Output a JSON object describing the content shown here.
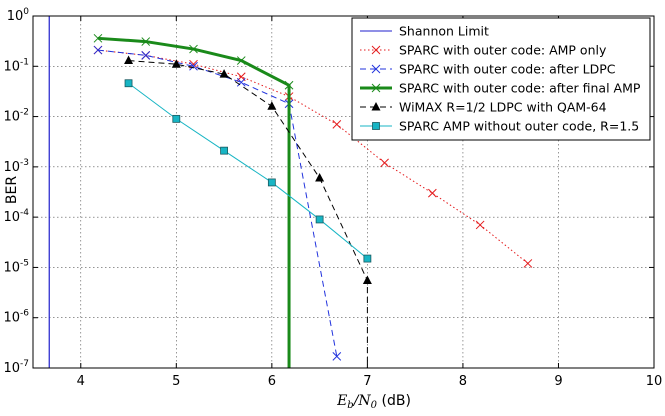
{
  "chart_data": {
    "type": "line",
    "xlabel": "E_b/N_0 (dB)",
    "xlabel_parts": {
      "main": "E",
      "sub1": "b",
      "mid": "/N",
      "sub2": "0",
      "unit": " (dB)"
    },
    "ylabel": "BER",
    "xlim": [
      3.5,
      10
    ],
    "ylim_log10": [
      -7,
      0
    ],
    "y_scale": "log",
    "grid": true,
    "x_ticks": [
      4,
      5,
      6,
      7,
      8,
      9,
      10
    ],
    "x_tick_labels": [
      "4",
      "5",
      "6",
      "7",
      "8",
      "9",
      "10"
    ],
    "y_ticks": [
      {
        "value_log10": 0,
        "label_base": "10",
        "label_exp": "0"
      },
      {
        "value_log10": -1,
        "label_base": "10",
        "label_exp": "-1"
      },
      {
        "value_log10": -2,
        "label_base": "10",
        "label_exp": "-2"
      },
      {
        "value_log10": -3,
        "label_base": "10",
        "label_exp": "-3"
      },
      {
        "value_log10": -4,
        "label_base": "10",
        "label_exp": "-4"
      },
      {
        "value_log10": -5,
        "label_base": "10",
        "label_exp": "-5"
      },
      {
        "value_log10": -6,
        "label_base": "10",
        "label_exp": "-6"
      },
      {
        "value_log10": -7,
        "label_base": "10",
        "label_exp": "-7"
      }
    ],
    "legend_position": "top-right",
    "series": [
      {
        "name": "Shannon Limit",
        "color": "#1f1fcc",
        "dash": "solid",
        "marker": "none",
        "vertical_x": 3.67
      },
      {
        "name": "SPARC with outer code: AMP only",
        "color": "#e41a1c",
        "dash": "dotted",
        "marker": "x",
        "x": [
          4.18,
          4.68,
          5.18,
          5.68,
          6.18,
          6.68,
          7.18,
          7.68,
          8.18,
          8.68
        ],
        "y": [
          0.21,
          0.165,
          0.11,
          0.062,
          0.025,
          0.007,
          0.0012,
          0.0003,
          7e-05,
          1.2e-05
        ]
      },
      {
        "name": "SPARC with outer code: after LDPC",
        "color": "#2233dd",
        "dash": "dashed",
        "marker": "x",
        "x": [
          4.18,
          4.68,
          5.18,
          5.68,
          6.18,
          6.68
        ],
        "y": [
          0.21,
          0.165,
          0.1,
          0.048,
          0.018,
          1.7e-07
        ]
      },
      {
        "name": "SPARC with outer code: after final AMP",
        "color": "#1a8a1a",
        "dash": "solid",
        "marker": "x",
        "thick": true,
        "x": [
          4.18,
          4.68,
          5.18,
          5.68,
          6.18,
          6.18
        ],
        "y": [
          0.36,
          0.31,
          0.22,
          0.13,
          0.042,
          1e-07
        ]
      },
      {
        "name": "WiMAX R=1/2 LDPC with QAM-64",
        "color": "#000000",
        "dash": "dashed",
        "marker": "triangle",
        "x": [
          4.5,
          5.0,
          5.5,
          6.0,
          6.5,
          7.0,
          7.0
        ],
        "y": [
          0.13,
          0.11,
          0.07,
          0.016,
          0.0006,
          5.5e-06,
          1e-07
        ]
      },
      {
        "name": "SPARC AMP without outer code, R=1.5",
        "color": "#17b5c4",
        "dash": "solid",
        "marker": "square",
        "x": [
          4.5,
          5.0,
          5.5,
          6.0,
          6.5,
          7.0
        ],
        "y": [
          0.046,
          0.009,
          0.0021,
          0.00049,
          9e-05,
          1.5e-05
        ]
      }
    ]
  }
}
